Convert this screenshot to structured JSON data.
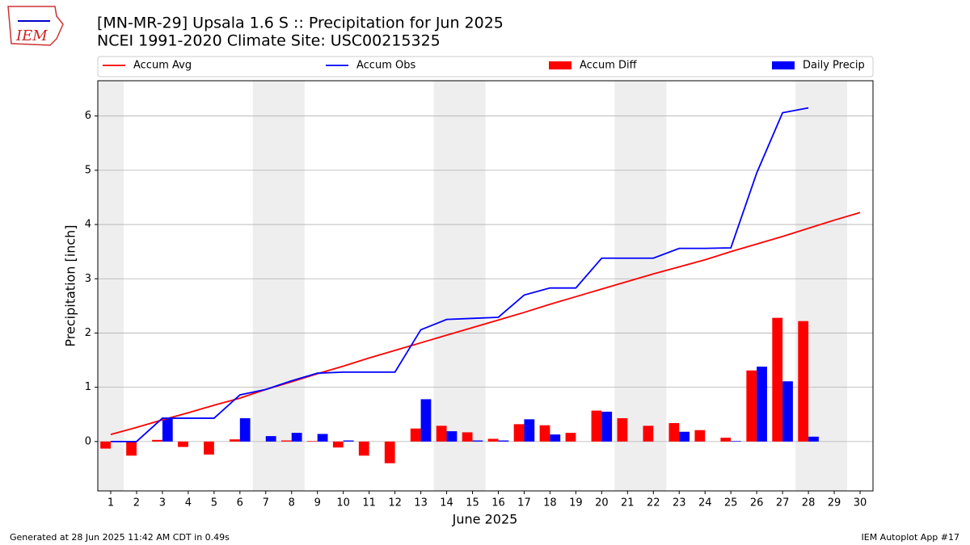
{
  "logo_text": "IEM",
  "footer": {
    "left": "Generated at 28 Jun 2025 11:42 AM CDT in 0.49s",
    "right": "IEM Autoplot App #17"
  },
  "chart_data": {
    "type": "combo",
    "title": "[MN-MR-29] Upsala 1.6 S :: Precipitation for Jun 2025",
    "subtitle": "NCEI 1991-2020 Climate Site: USC00215325",
    "x_label": "June 2025",
    "y_label": "Precipitation [inch]",
    "x": [
      1,
      2,
      3,
      4,
      5,
      6,
      7,
      8,
      9,
      10,
      11,
      12,
      13,
      14,
      15,
      16,
      17,
      18,
      19,
      20,
      21,
      22,
      23,
      24,
      25,
      26,
      27,
      28,
      29,
      30
    ],
    "xlim": [
      0.5,
      30.5
    ],
    "xticks": [
      1,
      2,
      3,
      4,
      5,
      6,
      7,
      8,
      9,
      10,
      11,
      12,
      13,
      14,
      15,
      16,
      17,
      18,
      19,
      20,
      21,
      22,
      23,
      24,
      25,
      26,
      27,
      28,
      29,
      30
    ],
    "ylim": [
      -0.91,
      6.65
    ],
    "yticks": [
      0,
      1,
      2,
      3,
      4,
      5,
      6
    ],
    "grid": true,
    "legend": "top",
    "shaded_bands": [
      [
        0.5,
        1.5
      ],
      [
        6.5,
        8.5
      ],
      [
        13.5,
        15.5
      ],
      [
        20.5,
        22.5
      ],
      [
        27.5,
        29.5
      ]
    ],
    "band_color": "#eeeeee",
    "series": [
      {
        "name": "Accum Avg",
        "kind": "line",
        "color": "#ff0000",
        "values": [
          0.13,
          0.26,
          0.4,
          0.53,
          0.67,
          0.8,
          0.96,
          1.1,
          1.25,
          1.39,
          1.54,
          1.68,
          1.82,
          1.96,
          2.1,
          2.24,
          2.38,
          2.53,
          2.67,
          2.81,
          2.95,
          3.09,
          3.22,
          3.35,
          3.5,
          3.64,
          3.78,
          3.93,
          4.08,
          4.22
        ]
      },
      {
        "name": "Accum Obs",
        "kind": "line",
        "color": "#0000ff",
        "values": [
          0,
          0,
          0.43,
          0.43,
          0.43,
          0.86,
          0.96,
          1.12,
          1.26,
          1.28,
          1.28,
          1.28,
          2.06,
          2.25,
          2.27,
          2.29,
          2.7,
          2.83,
          2.83,
          3.38,
          3.38,
          3.38,
          3.56,
          3.56,
          3.57,
          4.95,
          6.06,
          6.15,
          null,
          null
        ]
      },
      {
        "name": "Accum Diff",
        "kind": "bar",
        "color": "#ff0000",
        "values": [
          -0.13,
          -0.26,
          0.03,
          -0.1,
          -0.24,
          0.04,
          0.0,
          0.02,
          0.01,
          -0.11,
          -0.26,
          -0.4,
          0.24,
          0.29,
          0.17,
          0.05,
          0.32,
          0.3,
          0.16,
          0.57,
          0.43,
          0.29,
          0.34,
          0.21,
          0.07,
          1.31,
          2.28,
          2.22,
          null,
          null
        ]
      },
      {
        "name": "Daily Precip",
        "kind": "bar",
        "color": "#0000ff",
        "values": [
          0,
          0,
          0.43,
          0,
          0,
          0.43,
          0.1,
          0.16,
          0.14,
          0.02,
          0,
          0,
          0.78,
          0.19,
          0.02,
          0.02,
          0.41,
          0.13,
          0,
          0.55,
          0,
          0,
          0.18,
          0,
          0.01,
          1.38,
          1.11,
          0.09,
          null,
          null
        ]
      }
    ]
  }
}
